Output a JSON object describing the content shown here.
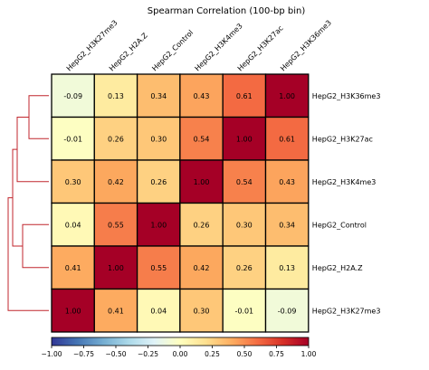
{
  "chart_data": {
    "type": "heatmap",
    "title": "Spearman Correlation (100-bp bin)",
    "columns": [
      "HepG2_H3K27me3",
      "HepG2_H2A.Z",
      "HepG2_Control",
      "HepG2_H3K4me3",
      "HepG2_H3K27ac",
      "HepG2_H3K36me3"
    ],
    "rows": [
      "HepG2_H3K36me3",
      "HepG2_H3K27ac",
      "HepG2_H3K4me3",
      "HepG2_Control",
      "HepG2_H2A.Z",
      "HepG2_H3K27me3"
    ],
    "values": [
      [
        -0.09,
        0.13,
        0.34,
        0.43,
        0.61,
        1.0
      ],
      [
        -0.01,
        0.26,
        0.3,
        0.54,
        1.0,
        0.61
      ],
      [
        0.3,
        0.42,
        0.26,
        1.0,
        0.54,
        0.43
      ],
      [
        0.04,
        0.55,
        1.0,
        0.26,
        0.3,
        0.34
      ],
      [
        0.41,
        1.0,
        0.55,
        0.42,
        0.26,
        0.13
      ],
      [
        1.0,
        0.41,
        0.04,
        0.3,
        -0.01,
        -0.09
      ]
    ],
    "value_labels": [
      [
        "-0.09",
        "0.13",
        "0.34",
        "0.43",
        "0.61",
        "1.00"
      ],
      [
        "-0.01",
        "0.26",
        "0.30",
        "0.54",
        "1.00",
        "0.61"
      ],
      [
        "0.30",
        "0.42",
        "0.26",
        "1.00",
        "0.54",
        "0.43"
      ],
      [
        "0.04",
        "0.55",
        "1.00",
        "0.26",
        "0.30",
        "0.34"
      ],
      [
        "0.41",
        "1.00",
        "0.55",
        "0.42",
        "0.26",
        "0.13"
      ],
      [
        "1.00",
        "0.41",
        "0.04",
        "0.30",
        "-0.01",
        "-0.09"
      ]
    ],
    "colorbar": {
      "vmin": -1.0,
      "vmax": 1.0,
      "colormap": "RdYlBu_r",
      "ticks": [
        "−1.00",
        "−0.75",
        "−0.50",
        "−0.25",
        "0.00",
        "0.25",
        "0.50",
        "0.75",
        "1.00"
      ],
      "tick_values": [
        -1.0,
        -0.75,
        -0.5,
        -0.25,
        0.0,
        0.25,
        0.5,
        0.75,
        1.0
      ],
      "placement": "bottom"
    },
    "dendrogram": {
      "placement": "left",
      "color": "#c0262d"
    }
  }
}
